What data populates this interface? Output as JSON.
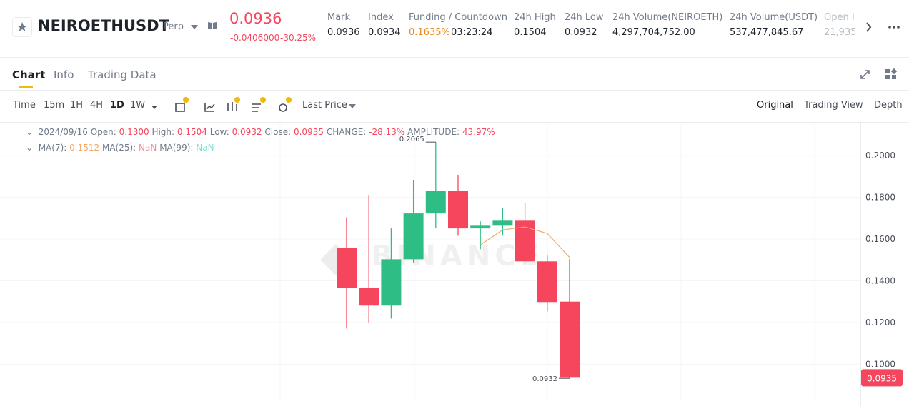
{
  "header": {
    "symbol": "NEIROETHUSDT",
    "contract": "Perp",
    "last_price": "0.0936",
    "change": "-0.0406000",
    "change_pct": "-30.25%",
    "stats": [
      {
        "label": "Mark",
        "value": "0.0936"
      },
      {
        "label": "Index",
        "value": "0.0934"
      },
      {
        "label": "Funding / Countdown",
        "value": "0.1635%",
        "value2": "03:23:24"
      },
      {
        "label": "24h High",
        "value": "0.1504"
      },
      {
        "label": "24h Low",
        "value": "0.0932"
      },
      {
        "label": "24h Volume(NEIROETH)",
        "value": "4,297,704,752.00"
      },
      {
        "label": "24h Volume(USDT)",
        "value": "537,477,845.67"
      },
      {
        "label": "Open I",
        "value": "21,935."
      }
    ]
  },
  "tabs": [
    "Chart",
    "Info",
    "Trading Data"
  ],
  "toolbar": {
    "intervals": [
      "Time",
      "15m",
      "1H",
      "4H",
      "1D",
      "1W"
    ],
    "price_type": "Last Price",
    "views": [
      "Original",
      "Trading View",
      "Depth"
    ]
  },
  "legend": {
    "date": "2024/09/16",
    "open_label": "Open:",
    "open": "0.1300",
    "high_label": "High:",
    "high": "0.1504",
    "low_label": "Low:",
    "low": "0.0932",
    "close_label": "Close:",
    "close": "0.0935",
    "change_label": "CHANGE:",
    "change": "-28.13%",
    "amplitude_label": "AMPLITUDE:",
    "amplitude": "43.97%",
    "ma7_label": "MA(7):",
    "ma7": "0.1512",
    "ma25_label": "MA(25):",
    "ma25": "NaN",
    "ma99_label": "MA(99):",
    "ma99": "NaN"
  },
  "chart_data": {
    "type": "candlestick",
    "watermark": "BINANCE",
    "open": [
      0.1558,
      0.1366,
      0.1281,
      0.1503,
      0.1723,
      0.1832,
      0.1651,
      0.1664,
      0.1688,
      0.1493,
      0.13
    ],
    "high": [
      0.1705,
      0.1812,
      0.1651,
      0.1884,
      0.2065,
      0.1908,
      0.1685,
      0.1747,
      0.1774,
      0.1524,
      0.1504
    ],
    "low": [
      0.1171,
      0.1199,
      0.1219,
      0.1486,
      0.1651,
      0.1616,
      0.1551,
      0.1616,
      0.1483,
      0.1253,
      0.0932
    ],
    "close": [
      0.1366,
      0.1281,
      0.1503,
      0.1723,
      0.1832,
      0.1651,
      0.1664,
      0.1688,
      0.1493,
      0.1298,
      0.0935
    ],
    "up_color": "#2ebd85",
    "down_color": "#f6465d",
    "ma": {
      "name": "MA(7)",
      "color": "#f0a868",
      "values": [
        null,
        null,
        null,
        null,
        null,
        null,
        0.1572,
        0.1644,
        0.1658,
        0.1627,
        0.1512
      ]
    },
    "ylim": [
      0.083,
      0.2158
    ],
    "yticks": [
      {
        "value": 0.1,
        "label": "0.1000"
      },
      {
        "value": 0.12,
        "label": "0.1200"
      },
      {
        "value": 0.14,
        "label": "0.1400"
      },
      {
        "value": 0.16,
        "label": "0.1600"
      },
      {
        "value": 0.18,
        "label": "0.1800"
      },
      {
        "value": 0.2,
        "label": "0.2000"
      }
    ],
    "grid": true
  }
}
